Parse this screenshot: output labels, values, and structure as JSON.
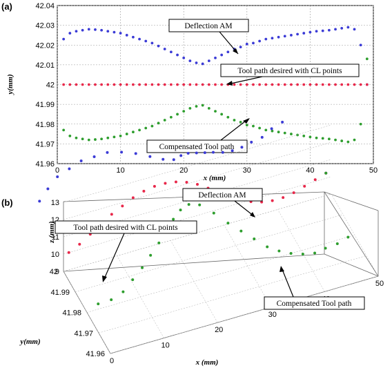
{
  "chart_data": [
    {
      "panel": "(a)",
      "type": "scatter",
      "xlabel": "x (mm)",
      "ylabel": "y(mm)",
      "xlim": [
        0,
        50
      ],
      "ylim": [
        41.96,
        42.04
      ],
      "xticks": [
        "0",
        "10",
        "20",
        "30",
        "40",
        "50"
      ],
      "yticks": [
        "41.96",
        "41.97",
        "41.98",
        "41.99",
        "42",
        "42.01",
        "42.02",
        "42.03",
        "42.04"
      ],
      "grid": true,
      "series": [
        {
          "name": "Deflection AM",
          "color": "#3b3bd6",
          "x": [
            1,
            2,
            3,
            4,
            5,
            6,
            7,
            8,
            9,
            10,
            11,
            12,
            13,
            14,
            15,
            16,
            17,
            18,
            19,
            20,
            21,
            22,
            23,
            24,
            25,
            26,
            27,
            28,
            29,
            30,
            31,
            32,
            33,
            34,
            35,
            36,
            37,
            38,
            39,
            40,
            41,
            42,
            43,
            44,
            45,
            46,
            47,
            48,
            49
          ],
          "y": [
            42.023,
            42.026,
            42.027,
            42.0275,
            42.028,
            42.0278,
            42.0275,
            42.027,
            42.0265,
            42.026,
            42.025,
            42.024,
            42.023,
            42.022,
            42.021,
            42.0195,
            42.018,
            42.0165,
            42.015,
            42.0135,
            42.012,
            42.011,
            42.0105,
            42.012,
            42.0135,
            42.015,
            42.0165,
            42.018,
            42.019,
            42.0205,
            42.021,
            42.022,
            42.023,
            42.0235,
            42.024,
            42.0245,
            42.025,
            42.0255,
            42.026,
            42.0265,
            42.027,
            42.0272,
            42.0275,
            42.028,
            42.0285,
            42.029,
            42.028,
            42.02,
            42.0
          ]
        },
        {
          "name": "Tool path desired with CL points",
          "color": "#e8284a",
          "x": [
            1,
            2,
            3,
            4,
            5,
            6,
            7,
            8,
            9,
            10,
            11,
            12,
            13,
            14,
            15,
            16,
            17,
            18,
            19,
            20,
            21,
            22,
            23,
            24,
            25,
            26,
            27,
            28,
            29,
            30,
            31,
            32,
            33,
            34,
            35,
            36,
            37,
            38,
            39,
            40,
            41,
            42,
            43,
            44,
            45,
            46,
            47,
            48,
            49
          ],
          "y": [
            42,
            42,
            42,
            42,
            42,
            42,
            42,
            42,
            42,
            42,
            42,
            42,
            42,
            42,
            42,
            42,
            42,
            42,
            42,
            42,
            42,
            42,
            42,
            42,
            42,
            42,
            42,
            42,
            42,
            42,
            42,
            42,
            42,
            42,
            42,
            42,
            42,
            42,
            42,
            42,
            42,
            42,
            42,
            42,
            42,
            42,
            42,
            42,
            42
          ]
        },
        {
          "name": "Compensated Tool path",
          "color": "#2e9e2e",
          "x": [
            1,
            2,
            3,
            4,
            5,
            6,
            7,
            8,
            9,
            10,
            11,
            12,
            13,
            14,
            15,
            16,
            17,
            18,
            19,
            20,
            21,
            22,
            23,
            24,
            25,
            26,
            27,
            28,
            29,
            30,
            31,
            32,
            33,
            34,
            35,
            36,
            37,
            38,
            39,
            40,
            41,
            42,
            43,
            44,
            45,
            46,
            47,
            48,
            49
          ],
          "y": [
            41.977,
            41.974,
            41.973,
            41.9725,
            41.972,
            41.9722,
            41.9725,
            41.973,
            41.9735,
            41.974,
            41.975,
            41.976,
            41.977,
            41.978,
            41.979,
            41.9805,
            41.982,
            41.9835,
            41.985,
            41.9865,
            41.988,
            41.989,
            41.9895,
            41.988,
            41.9865,
            41.985,
            41.9835,
            41.982,
            41.981,
            41.9795,
            41.979,
            41.978,
            41.977,
            41.9765,
            41.976,
            41.9755,
            41.975,
            41.9745,
            41.974,
            41.9735,
            41.973,
            41.9728,
            41.9725,
            41.972,
            41.9715,
            41.971,
            41.972,
            41.98,
            42.013
          ]
        }
      ],
      "annotations": [
        "Deflection AM",
        "Tool path desired with CL points",
        "Compensated Tool path"
      ]
    },
    {
      "panel": "(b)",
      "type": "scatter",
      "projection": "3d",
      "xlabel": "x (mm)",
      "ylabel": "y(mm)",
      "zlabel": "z (mm)",
      "xlim": [
        0,
        50
      ],
      "ylim": [
        41.96,
        42
      ],
      "zlim": [
        9,
        13
      ],
      "xticks": [
        "0",
        "10",
        "20",
        "30",
        "40",
        "50"
      ],
      "yticks": [
        "41.96",
        "41.97",
        "41.98",
        "41.99",
        "42"
      ],
      "zticks": [
        "9",
        "10",
        "11",
        "12",
        "13"
      ],
      "grid": true,
      "series": [
        {
          "name": "Deflection AM",
          "color": "#3b3bd6",
          "x": [
            1,
            3,
            5,
            7,
            9,
            11,
            13,
            15,
            17,
            19,
            21,
            23,
            25,
            27,
            29,
            31,
            33,
            35,
            37,
            39,
            41,
            43,
            45,
            47,
            49
          ],
          "y": [
            42.025,
            42.027,
            42.028,
            42.027,
            42.026,
            42.024,
            42.022,
            42.019,
            42.016,
            42.013,
            42.011,
            42.011,
            42.014,
            42.017,
            42.019,
            42.021,
            42.023,
            42.024,
            42.025,
            42.026,
            42.027,
            42.027,
            42.028,
            42.028,
            42.0
          ],
          "z": [
            10.0,
            10.3,
            10.7,
            11.1,
            11.5,
            11.8,
            12.1,
            12.3,
            12.4,
            12.4,
            12.3,
            12.1,
            11.8,
            11.4,
            11.0,
            10.6,
            10.2,
            9.9,
            9.7,
            9.6,
            9.6,
            9.7,
            9.9,
            10.1,
            10.3
          ]
        },
        {
          "name": "Tool path desired with CL points",
          "color": "#e8284a",
          "x": [
            1,
            3,
            5,
            7,
            9,
            11,
            13,
            15,
            17,
            19,
            21,
            23,
            25,
            27,
            29,
            31,
            33,
            35,
            37,
            39,
            41,
            43,
            45,
            47,
            49
          ],
          "y": [
            42,
            42,
            42,
            42,
            42,
            42,
            42,
            42,
            42,
            42,
            42,
            42,
            42,
            42,
            42,
            42,
            42,
            42,
            42,
            42,
            42,
            42,
            42,
            42,
            42
          ],
          "z": [
            10.0,
            10.3,
            10.7,
            11.1,
            11.5,
            11.8,
            12.1,
            12.3,
            12.4,
            12.4,
            12.3,
            12.1,
            11.8,
            11.4,
            11.0,
            10.6,
            10.2,
            9.9,
            9.7,
            9.6,
            9.6,
            9.7,
            9.9,
            10.1,
            10.3
          ]
        },
        {
          "name": "Compensated Tool path",
          "color": "#2e9e2e",
          "x": [
            1,
            3,
            5,
            7,
            9,
            11,
            13,
            15,
            17,
            19,
            21,
            23,
            25,
            27,
            29,
            31,
            33,
            35,
            37,
            39,
            41,
            43,
            45,
            47,
            49
          ],
          "y": [
            41.975,
            41.973,
            41.972,
            41.973,
            41.974,
            41.976,
            41.978,
            41.981,
            41.984,
            41.987,
            41.989,
            41.989,
            41.986,
            41.983,
            41.981,
            41.979,
            41.977,
            41.976,
            41.975,
            41.974,
            41.973,
            41.973,
            41.972,
            41.972,
            42.0
          ],
          "z": [
            10.0,
            10.3,
            10.7,
            11.1,
            11.5,
            11.8,
            12.1,
            12.3,
            12.4,
            12.4,
            12.3,
            12.1,
            11.8,
            11.4,
            11.0,
            10.6,
            10.2,
            9.9,
            9.7,
            9.6,
            9.6,
            9.7,
            9.9,
            10.1,
            10.3
          ]
        }
      ],
      "annotations": [
        "Deflection AM",
        "Tool path desired with CL points",
        "Compensated Tool path"
      ]
    }
  ]
}
